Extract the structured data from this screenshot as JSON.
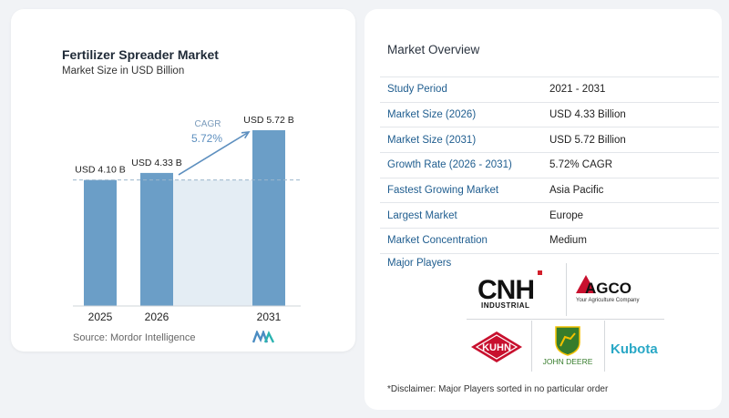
{
  "chart_data": {
    "type": "bar",
    "title": "Fertilizer Spreader Market",
    "subtitle": "Market Size in USD Billion",
    "categories": [
      "2025",
      "2026",
      "2031"
    ],
    "values": [
      4.1,
      4.33,
      5.72
    ],
    "value_labels": [
      "USD 4.10 B",
      "USD 4.33 B",
      "USD 5.72 B"
    ],
    "cagr_label": "CAGR",
    "cagr_value": "5.72%",
    "bar_color": "#6b9ec7",
    "reference_line_color": "#9bb6cc",
    "shaded_region_color": "#e4edf4",
    "grid": false,
    "ylim": [
      0,
      5.72
    ]
  },
  "source": "Source:  Mordor Intelligence",
  "overview": {
    "title": "Market Overview",
    "rows": [
      {
        "key": "Study Period",
        "value": "2021 - 2031"
      },
      {
        "key": "Market Size (2026)",
        "value": "USD 4.33 Billion"
      },
      {
        "key": "Market Size (2031)",
        "value": "USD 5.72 Billion"
      },
      {
        "key": "Growth Rate (2026 - 2031)",
        "value": "5.72% CAGR"
      },
      {
        "key": "Fastest Growing Market",
        "value": "Asia Pacific"
      },
      {
        "key": "Largest Market",
        "value": "Europe"
      },
      {
        "key": "Market Concentration",
        "value": "Medium"
      }
    ]
  },
  "players": {
    "label": "Major Players",
    "cnh_main": "CNH",
    "cnh_sub": "INDUSTRIAL",
    "agco_main": "AGCO",
    "agco_sub": "Your Agriculture Company",
    "kuhn": "KUHN",
    "deere": "JOHN DEERE",
    "kubota": "Kubota"
  },
  "disclaimer": "*Disclaimer: Major Players sorted in no particular order"
}
